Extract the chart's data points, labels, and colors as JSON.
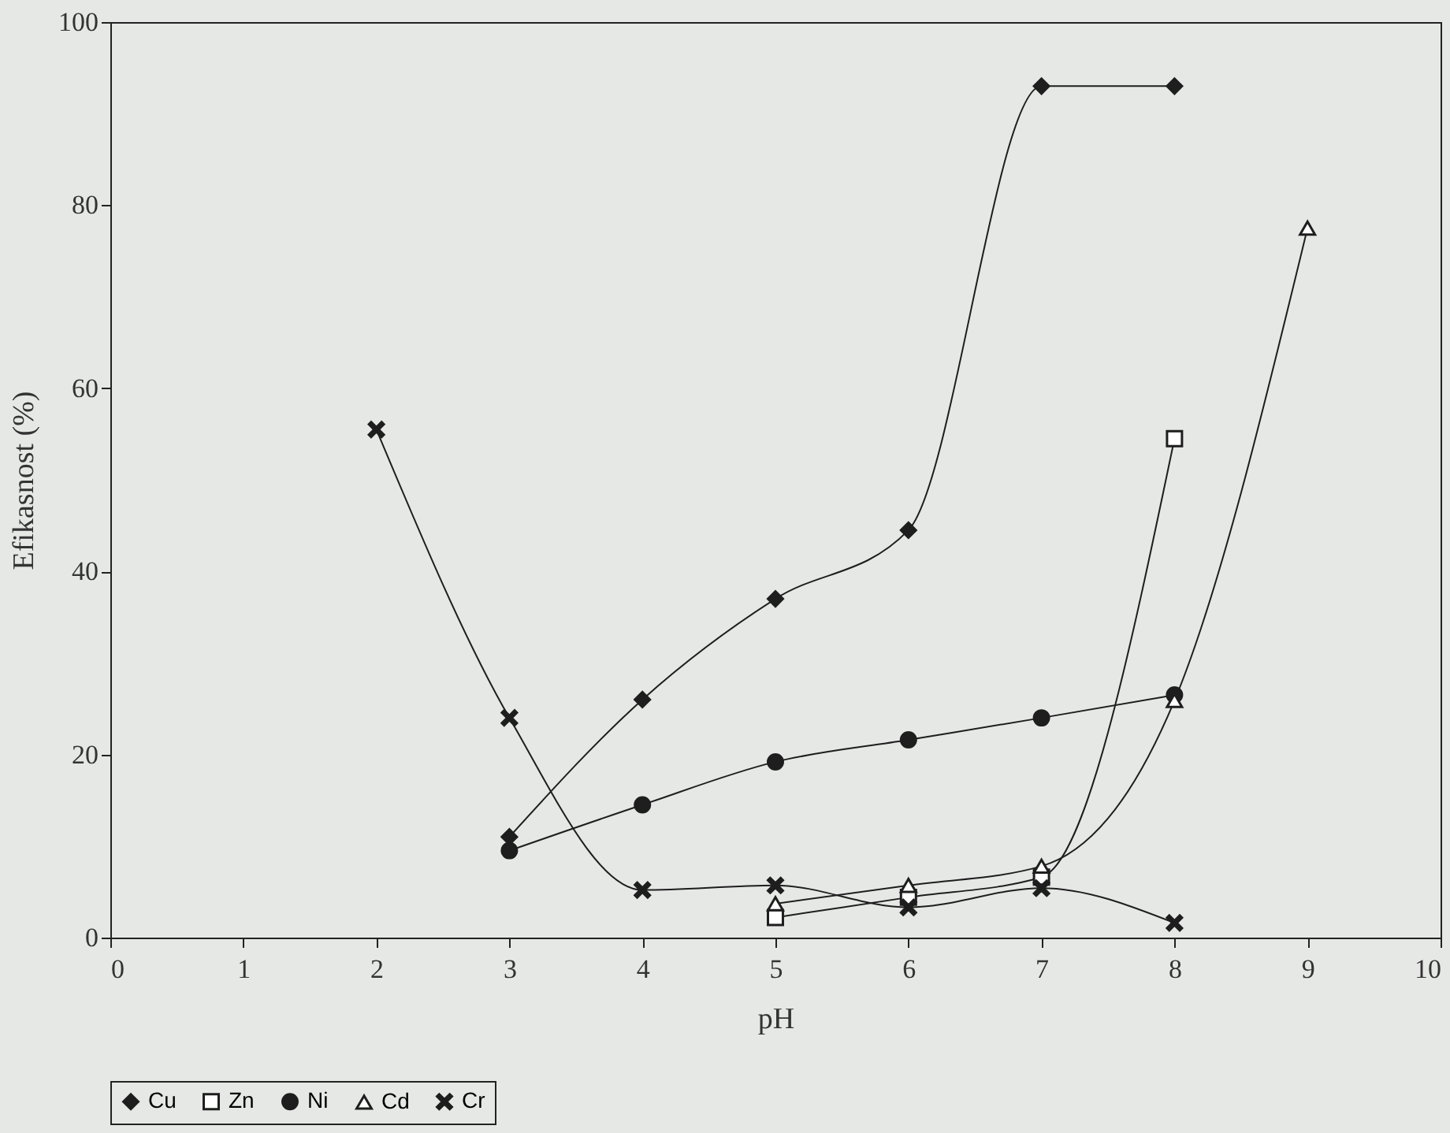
{
  "chart_data": {
    "type": "line",
    "xlabel": "pH",
    "ylabel": "Efikasnost (%)",
    "xlim": [
      0,
      10
    ],
    "xticks": [
      0,
      1,
      2,
      3,
      4,
      5,
      6,
      7,
      8,
      9,
      10
    ],
    "ylim": [
      0,
      100
    ],
    "yticks": [
      0,
      20,
      40,
      60,
      80,
      100
    ],
    "grid": false,
    "legend": "bottom",
    "series": [
      {
        "name": "Cu",
        "color": "#1e1e1e",
        "marker": "diamond",
        "x": [
          3,
          4,
          5,
          6,
          7,
          8
        ],
        "values": [
          11,
          26,
          37,
          44.5,
          93,
          93
        ]
      },
      {
        "name": "Zn",
        "color": "#1e1e1e",
        "marker": "square",
        "x": [
          5,
          6,
          7,
          8
        ],
        "values": [
          2.2,
          4.4,
          6.6,
          54.5
        ]
      },
      {
        "name": "Ni",
        "color": "#1e1e1e",
        "marker": "circle",
        "x": [
          3,
          4,
          5,
          6,
          7,
          8
        ],
        "values": [
          9.5,
          14.5,
          19.2,
          21.6,
          24,
          26.5
        ]
      },
      {
        "name": "Cd",
        "color": "#1e1e1e",
        "marker": "triangle",
        "x": [
          5,
          6,
          7,
          8,
          9
        ],
        "values": [
          3.7,
          5.7,
          7.8,
          25.9,
          77.5
        ]
      },
      {
        "name": "Cr",
        "color": "#1e1e1e",
        "marker": "cross",
        "x": [
          2,
          3,
          4,
          5,
          6,
          7,
          8
        ],
        "values": [
          55.5,
          24,
          5.2,
          5.7,
          3.3,
          5.4,
          1.6
        ]
      }
    ]
  }
}
